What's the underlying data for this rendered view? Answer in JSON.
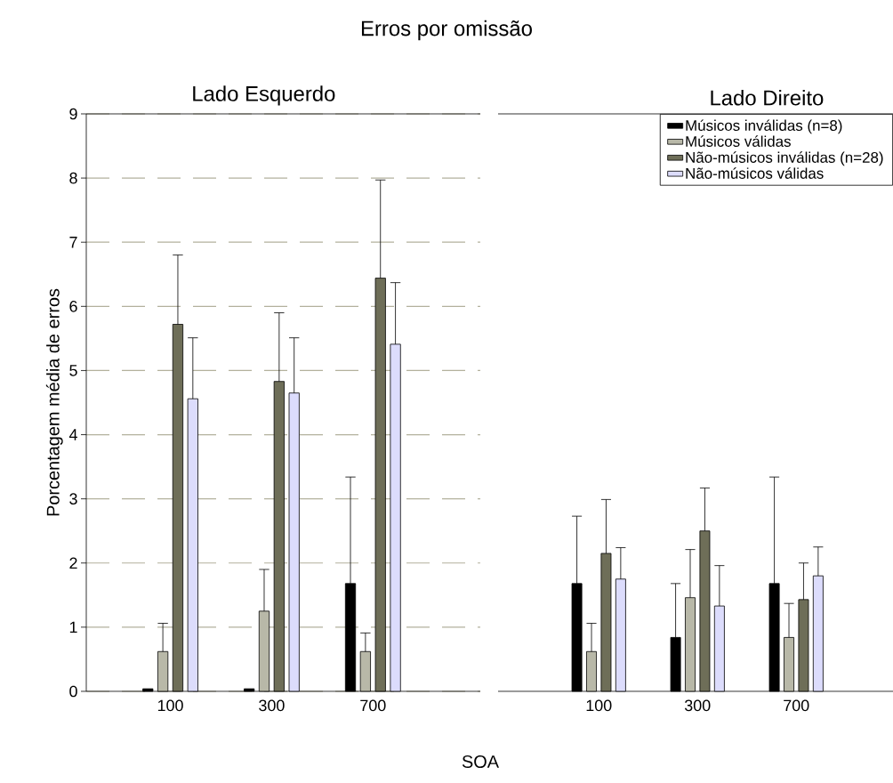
{
  "chart_data": [
    {
      "type": "bar",
      "title": "Erros por omissão",
      "subtitle": "Lado Esquerdo",
      "xlabel": "SOA",
      "ylabel": "Porcentagem média de erros",
      "categories": [
        "100",
        "300",
        "700"
      ],
      "ylim": [
        0,
        9
      ],
      "yticks": [
        0,
        1,
        2,
        3,
        4,
        5,
        6,
        7,
        8,
        9
      ],
      "grid": "y",
      "series": [
        {
          "color": "#000000",
          "values": [
            0.04,
            0.04,
            1.68
          ],
          "errors": [
            null,
            null,
            [
              1.68,
              3.34
            ]
          ]
        },
        {
          "color": "#b8b8a8",
          "values": [
            0.62,
            1.25,
            0.62
          ],
          "errors": [
            [
              0.62,
              1.06
            ],
            [
              1.25,
              1.9
            ],
            [
              0.62,
              0.91
            ]
          ]
        },
        {
          "color": "#6e6e58",
          "values": [
            5.72,
            4.83,
            6.44
          ],
          "errors": [
            [
              5.72,
              6.8
            ],
            [
              4.83,
              5.9
            ],
            [
              6.44,
              7.97
            ]
          ]
        },
        {
          "color": "#dcdcfc",
          "values": [
            4.56,
            4.65,
            5.41
          ],
          "errors": [
            [
              4.56,
              5.51
            ],
            [
              4.65,
              5.51
            ],
            [
              5.41,
              6.37
            ]
          ]
        }
      ]
    },
    {
      "type": "bar",
      "subtitle": "Lado Direito",
      "categories": [
        "100",
        "300",
        "700"
      ],
      "ylim": [
        0,
        9
      ],
      "yticks": [
        0,
        1,
        2,
        3,
        4,
        5,
        6,
        7,
        8,
        9
      ],
      "grid": "y",
      "tick_labels": "x",
      "legend": "top right",
      "series": [
        {
          "name": "Músicos inválidas (n=8)",
          "color": "#000000",
          "values": [
            1.68,
            0.84,
            1.68
          ],
          "errors": [
            [
              1.68,
              2.73
            ],
            [
              0.84,
              1.68
            ],
            [
              1.68,
              3.34
            ]
          ]
        },
        {
          "name": "Músicos válidas",
          "color": "#b8b8a8",
          "values": [
            0.62,
            1.46,
            0.84
          ],
          "errors": [
            [
              0.62,
              1.06
            ],
            [
              1.46,
              2.21
            ],
            [
              0.84,
              1.37
            ]
          ]
        },
        {
          "name": "Não-músicos inválidas (n=28)",
          "color": "#6e6e58",
          "values": [
            2.15,
            2.5,
            1.43
          ],
          "errors": [
            [
              2.15,
              2.99
            ],
            [
              2.5,
              3.17
            ],
            [
              1.43,
              2.0
            ]
          ]
        },
        {
          "name": "Não-músicos válidas",
          "color": "#dcdcfc",
          "values": [
            1.75,
            1.33,
            1.8
          ],
          "errors": [
            [
              1.75,
              2.24
            ],
            [
              1.33,
              1.96
            ],
            [
              1.8,
              2.25
            ]
          ]
        }
      ]
    }
  ]
}
